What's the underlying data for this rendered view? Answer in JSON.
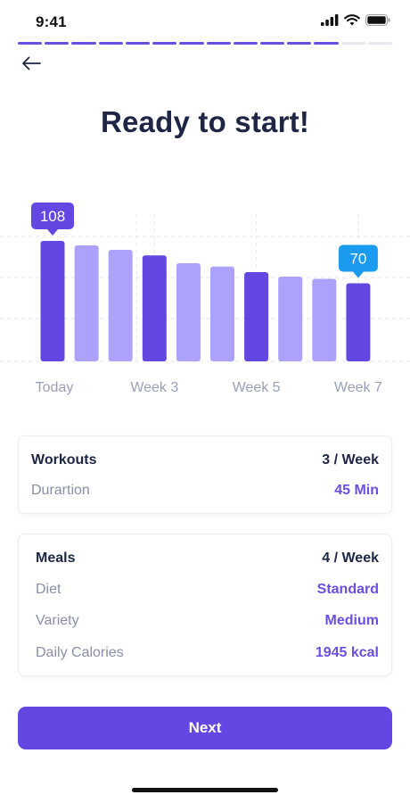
{
  "status_bar": {
    "time": "9:41",
    "icons": [
      "cellular-signal-icon",
      "wifi-icon",
      "battery-icon"
    ]
  },
  "progress": {
    "total_steps": 14,
    "completed_steps": 12,
    "accent": "#6a4fe3"
  },
  "navigation": {
    "back_icon": "arrow-left-icon"
  },
  "title": "Ready to start!",
  "chart_data": {
    "type": "bar",
    "title": "",
    "xlabel": "",
    "ylabel": "",
    "categories": [
      "Today",
      "",
      "",
      "Week 3",
      "",
      "",
      "Week 5",
      "",
      "",
      "Week 7"
    ],
    "values": [
      108,
      104,
      100,
      95,
      88,
      85,
      80,
      76,
      74,
      70
    ],
    "tick_labels": [
      "Today",
      "Week 3",
      "Week 5",
      "Week 7"
    ],
    "highlighted": [
      true,
      false,
      false,
      true,
      false,
      false,
      true,
      false,
      false,
      true
    ],
    "callouts": [
      {
        "index": 0,
        "label": "108",
        "color": "#6447e3"
      },
      {
        "index": 9,
        "label": "70",
        "color": "#1a9bf0"
      }
    ],
    "ylim": [
      0,
      120
    ],
    "grid": true,
    "colors": {
      "highlight": "#6447e3",
      "muted": "#aca1fb"
    }
  },
  "workout_card": {
    "rows": [
      {
        "label": "Workouts",
        "value": "3 / Week"
      },
      {
        "label": "Durartion",
        "value": "45 Min"
      }
    ]
  },
  "meal_card": {
    "rows": [
      {
        "label": "Meals",
        "value": "4 / Week"
      },
      {
        "label": "Diet",
        "value": "Standard"
      },
      {
        "label": "Variety",
        "value": "Medium"
      },
      {
        "label": "Daily Calories",
        "value": "1945 kcal"
      }
    ]
  },
  "next_button": {
    "label": "Next"
  }
}
